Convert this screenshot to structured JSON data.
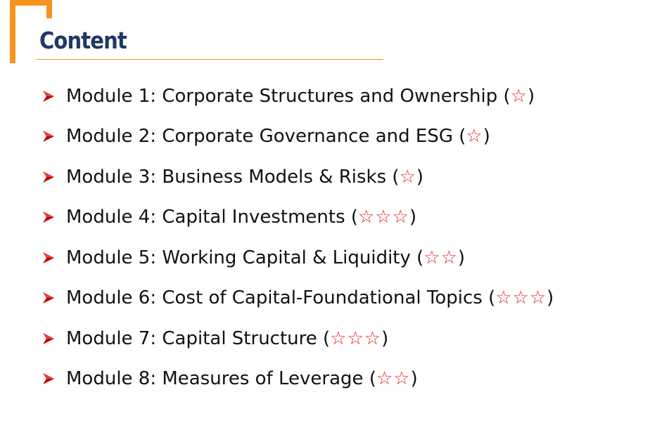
{
  "slide": {
    "title": "Content"
  },
  "colors": {
    "accent_orange": "#f7941d",
    "title_blue": "#1f3864",
    "rule_gold": "#d4a017",
    "bullet_red": "#c00000",
    "star_red": "#e8262c"
  },
  "modules": [
    {
      "label": "Module 1: Corporate Structures and Ownership",
      "stars": "☆"
    },
    {
      "label": "Module 2: Corporate Governance and ESG",
      "stars": "☆"
    },
    {
      "label": "Module 3: Business Models & Risks",
      "stars": "☆"
    },
    {
      "label": "Module 4: Capital Investments",
      "stars": "☆☆☆"
    },
    {
      "label": "Module 5: Working Capital & Liquidity",
      "stars": "☆☆"
    },
    {
      "label": "Module 6: Cost of Capital-Foundational Topics",
      "stars": "☆☆☆"
    },
    {
      "label": "Module 7: Capital Structure",
      "stars": "☆☆☆"
    },
    {
      "label": "Module 8: Measures of Leverage",
      "stars": "☆☆"
    }
  ],
  "bullet_icon": "arrowhead-bullet-icon"
}
